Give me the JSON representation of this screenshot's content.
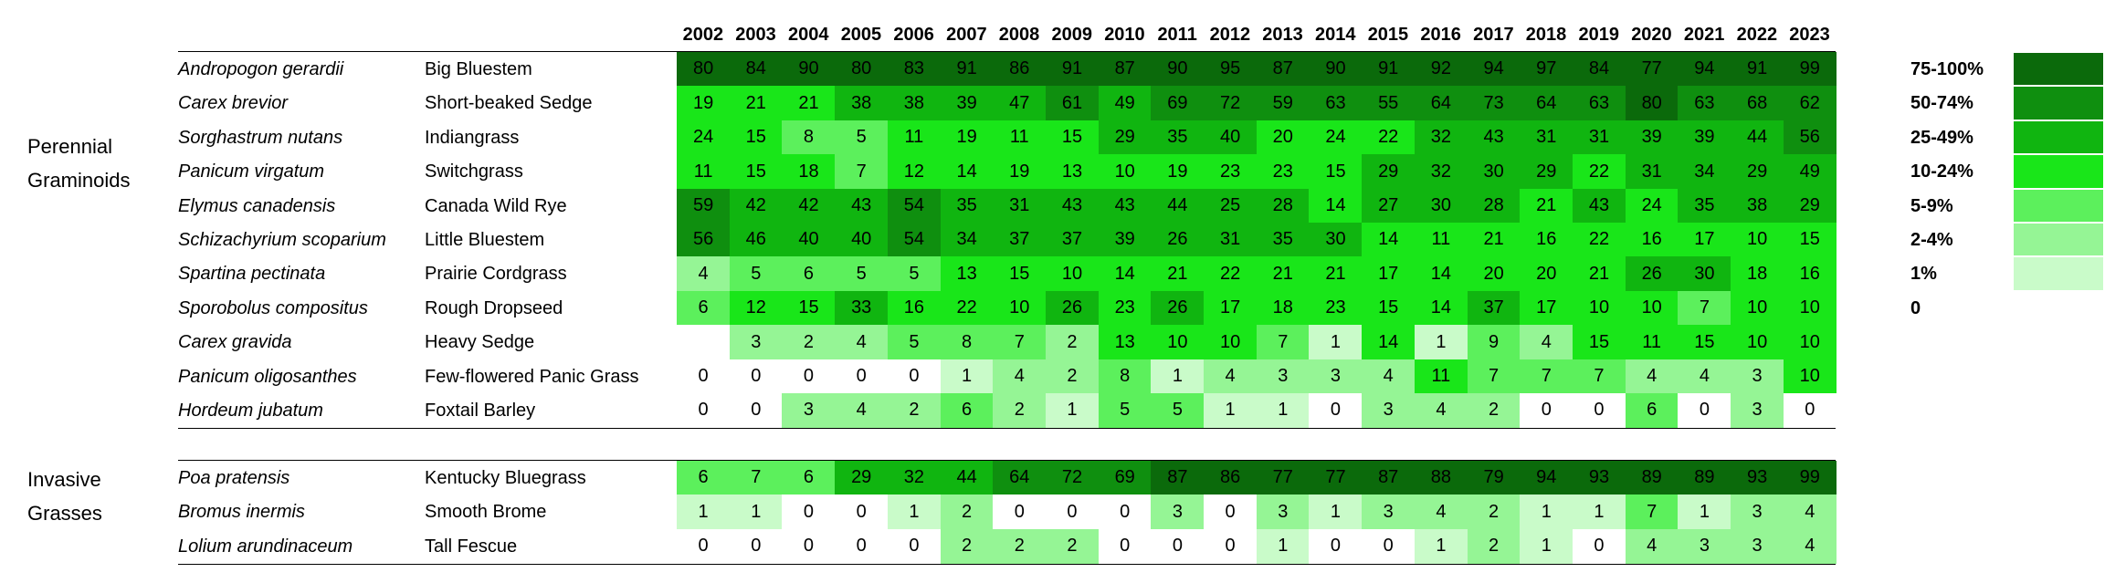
{
  "header": {
    "years": [
      2002,
      2003,
      2004,
      2005,
      2006,
      2007,
      2008,
      2009,
      2010,
      2011,
      2012,
      2013,
      2014,
      2015,
      2016,
      2017,
      2018,
      2019,
      2020,
      2021,
      2022,
      2023
    ]
  },
  "groups": [
    {
      "label": "Perennial Graminoids",
      "rows": [
        {
          "species": "Andropogon gerardii",
          "common": "Big Bluestem",
          "values": [
            80,
            84,
            90,
            80,
            83,
            91,
            86,
            91,
            87,
            90,
            95,
            87,
            90,
            91,
            92,
            94,
            97,
            84,
            77,
            94,
            91,
            99
          ]
        },
        {
          "species": "Carex brevior",
          "common": "Short-beaked Sedge",
          "values": [
            19,
            21,
            21,
            38,
            38,
            39,
            47,
            61,
            49,
            69,
            72,
            59,
            63,
            55,
            64,
            73,
            64,
            63,
            80,
            63,
            68,
            62
          ]
        },
        {
          "species": "Sorghastrum  nutans",
          "common": "Indiangrass",
          "values": [
            24,
            15,
            8,
            5,
            11,
            19,
            11,
            15,
            29,
            35,
            40,
            20,
            24,
            22,
            32,
            43,
            31,
            31,
            39,
            39,
            44,
            56
          ]
        },
        {
          "species": "Panicum virgatum",
          "common": "Switchgrass",
          "values": [
            11,
            15,
            18,
            7,
            12,
            14,
            19,
            13,
            10,
            19,
            23,
            23,
            15,
            29,
            32,
            30,
            29,
            22,
            31,
            34,
            29,
            49
          ]
        },
        {
          "species": "Elymus canadensis",
          "common": "Canada Wild Rye",
          "values": [
            59,
            42,
            42,
            43,
            54,
            35,
            31,
            43,
            43,
            44,
            25,
            28,
            14,
            27,
            30,
            28,
            21,
            43,
            24,
            35,
            38,
            29
          ]
        },
        {
          "species": "Schizachyrium scoparium",
          "common": "Little Bluestem",
          "values": [
            56,
            46,
            40,
            40,
            54,
            34,
            37,
            37,
            39,
            26,
            31,
            35,
            30,
            14,
            11,
            21,
            16,
            22,
            16,
            17,
            10,
            15
          ]
        },
        {
          "species": "Spartina pectinata",
          "common": "Prairie Cordgrass",
          "values": [
            4,
            5,
            6,
            5,
            5,
            13,
            15,
            10,
            14,
            21,
            22,
            21,
            21,
            17,
            14,
            20,
            20,
            21,
            26,
            30,
            18,
            16
          ]
        },
        {
          "species": "Sporobolus compositus",
          "common": "Rough Dropseed",
          "values": [
            6,
            12,
            15,
            33,
            16,
            22,
            10,
            26,
            23,
            26,
            17,
            18,
            23,
            15,
            14,
            37,
            17,
            10,
            10,
            7,
            10,
            10
          ]
        },
        {
          "species": "Carex gravida",
          "common": "Heavy Sedge",
          "values": [
            null,
            3,
            2,
            4,
            5,
            8,
            7,
            2,
            13,
            10,
            10,
            7,
            1,
            14,
            1,
            9,
            4,
            15,
            11,
            15,
            10,
            10
          ]
        },
        {
          "species": "Panicum oligosanthes",
          "common": "Few-flowered Panic Grass",
          "values": [
            0,
            0,
            0,
            0,
            0,
            1,
            4,
            2,
            8,
            1,
            4,
            3,
            3,
            4,
            11,
            7,
            7,
            7,
            4,
            4,
            3,
            10
          ]
        },
        {
          "species": "Hordeum jubatum",
          "common": "Foxtail Barley",
          "values": [
            0,
            0,
            3,
            4,
            2,
            6,
            2,
            1,
            5,
            5,
            1,
            1,
            0,
            3,
            4,
            2,
            0,
            0,
            6,
            0,
            3,
            0
          ]
        }
      ]
    },
    {
      "label": "Invasive Grasses",
      "rows": [
        {
          "species": "Poa pratensis",
          "common": "Kentucky Bluegrass",
          "values": [
            6,
            7,
            6,
            29,
            32,
            44,
            64,
            72,
            69,
            87,
            86,
            77,
            77,
            87,
            88,
            79,
            94,
            93,
            89,
            89,
            93,
            99
          ]
        },
        {
          "species": "Bromus inermis",
          "common": "Smooth Brome",
          "values": [
            1,
            1,
            0,
            0,
            1,
            2,
            0,
            0,
            0,
            3,
            0,
            3,
            1,
            3,
            4,
            2,
            1,
            1,
            7,
            1,
            3,
            4
          ]
        },
        {
          "species": "Lolium arundinaceum",
          "common": "Tall Fescue",
          "values": [
            0,
            0,
            0,
            0,
            0,
            2,
            2,
            2,
            0,
            0,
            0,
            1,
            0,
            0,
            1,
            2,
            1,
            0,
            4,
            3,
            3,
            4
          ]
        }
      ]
    }
  ],
  "legend": [
    {
      "label": "75-100%",
      "color": "#0b6a0b"
    },
    {
      "label": "50-74%",
      "color": "#0f8f0f"
    },
    {
      "label": "25-49%",
      "color": "#10b510"
    },
    {
      "label": "10-24%",
      "color": "#19e619"
    },
    {
      "label": "5-9%",
      "color": "#5cf05c"
    },
    {
      "label": "2-4%",
      "color": "#95f595"
    },
    {
      "label": "1%",
      "color": "#c9fbc9"
    },
    {
      "label": "0",
      "color": "#ffffff"
    }
  ]
}
